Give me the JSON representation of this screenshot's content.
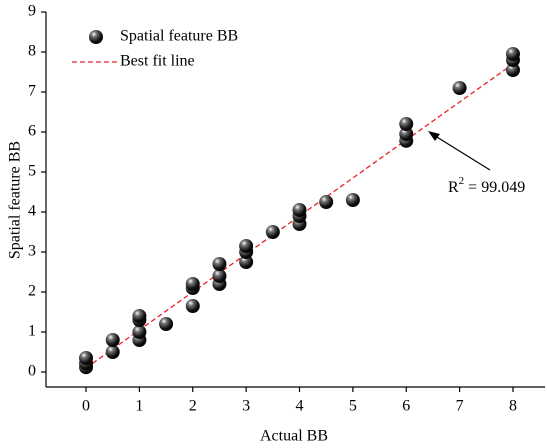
{
  "chart_data": {
    "type": "scatter",
    "x_label": "Actual BB",
    "y_label": "Spatial feature BB",
    "xlim": [
      -0.75,
      8.6
    ],
    "ylim": [
      -0.375,
      9
    ],
    "xticks": [
      0,
      1,
      2,
      3,
      4,
      5,
      6,
      7,
      8
    ],
    "yticks": [
      0,
      1,
      2,
      3,
      4,
      5,
      6,
      7,
      8,
      9
    ],
    "grid": false,
    "legend": "upper-left",
    "series": [
      {
        "name": "Spatial feature BB",
        "color": "#000000",
        "style": "marker",
        "x": [
          0,
          0,
          0,
          0.5,
          0.5,
          1,
          1,
          1,
          1,
          1.5,
          2,
          2,
          2,
          2.5,
          2.5,
          2.5,
          3,
          3,
          3,
          3.5,
          4,
          4,
          4,
          4.5,
          5,
          6,
          6,
          6,
          7,
          8,
          8,
          8
        ],
        "values": [
          0.12,
          0.22,
          0.35,
          0.5,
          0.8,
          0.8,
          1.0,
          1.3,
          1.4,
          1.2,
          1.65,
          2.1,
          2.2,
          2.2,
          2.4,
          2.7,
          2.75,
          3.0,
          3.15,
          3.5,
          3.7,
          3.9,
          4.05,
          4.25,
          4.3,
          5.78,
          5.95,
          6.2,
          7.1,
          7.55,
          7.8,
          7.95
        ]
      },
      {
        "name": "Best fit line",
        "color": "#e8212a",
        "style": "dashed-line",
        "x": [
          0,
          8
        ],
        "values": [
          0.1,
          7.7
        ]
      }
    ],
    "annotation": {
      "base": "R",
      "sup": "2",
      "text": " = 99.049"
    }
  }
}
